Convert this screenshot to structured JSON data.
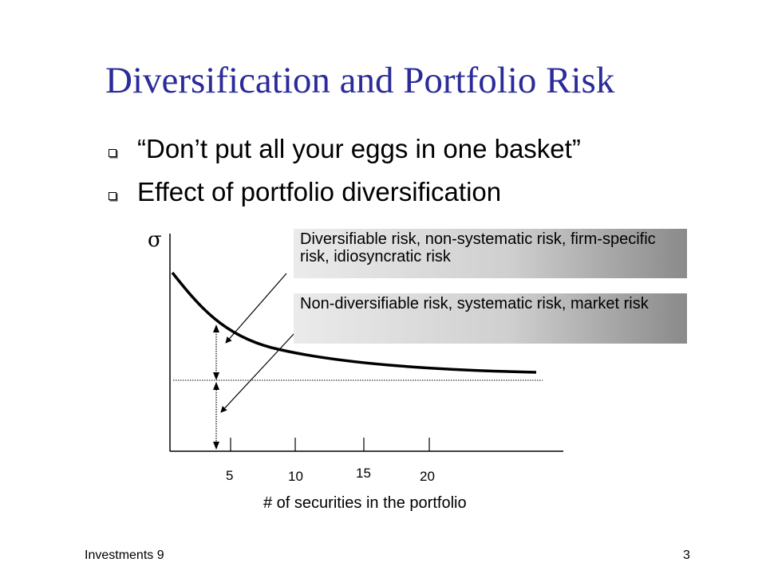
{
  "slide": {
    "title": "Diversification and Portfolio Risk",
    "bullets": [
      "“Don’t put all your eggs in one basket”",
      "Effect of portfolio diversification"
    ]
  },
  "diagram": {
    "y_axis_symbol": "σ",
    "labels": {
      "diversifiable": "Diversifiable risk, non-systematic risk, firm-specific risk, idiosyncratic risk",
      "non_diversifiable": "Non-diversifiable risk, systematic risk, market risk"
    },
    "x_ticks": [
      "5",
      "10",
      "15",
      "20"
    ],
    "x_axis_title": "# of securities in the portfolio"
  },
  "footer": {
    "left": "Investments 9",
    "page_number": "3"
  }
}
